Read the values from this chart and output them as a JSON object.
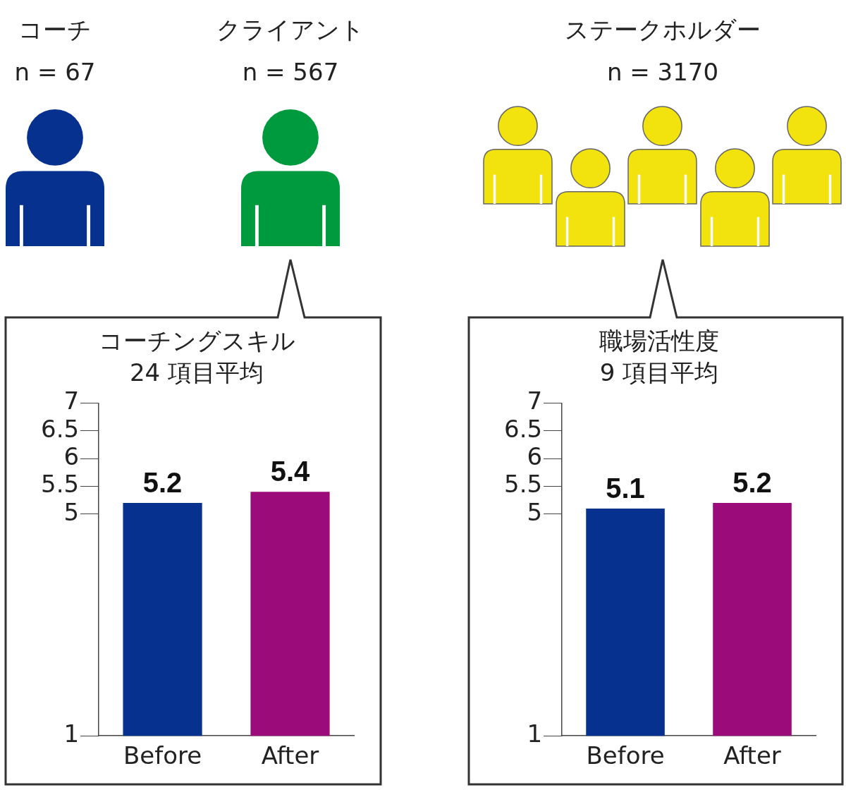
{
  "chart_data": [
    {
      "type": "bar",
      "title": "コーチングスキル",
      "subtitle": "24 項目平均",
      "annotations": [
        "コーチ",
        "n = 67",
        "クライアント",
        "n = 567"
      ],
      "categories": [
        "Before",
        "After"
      ],
      "values": [
        5.2,
        5.4
      ],
      "colors": [
        "#06318f",
        "#9b0b7a"
      ],
      "ylim": [
        1,
        7
      ],
      "yticks": [
        1,
        5,
        5.5,
        6,
        6.5,
        7
      ],
      "data_labels": true
    },
    {
      "type": "bar",
      "title": "職場活性度",
      "subtitle": "9 項目平均",
      "annotations": [
        "ステークホルダー",
        "n = 3170"
      ],
      "categories": [
        "Before",
        "After"
      ],
      "values": [
        5.1,
        5.2
      ],
      "colors": [
        "#06318f",
        "#9b0b7a"
      ],
      "ylim": [
        1,
        7
      ],
      "yticks": [
        1,
        5,
        5.5,
        6,
        6.5,
        7
      ],
      "data_labels": true
    }
  ]
}
